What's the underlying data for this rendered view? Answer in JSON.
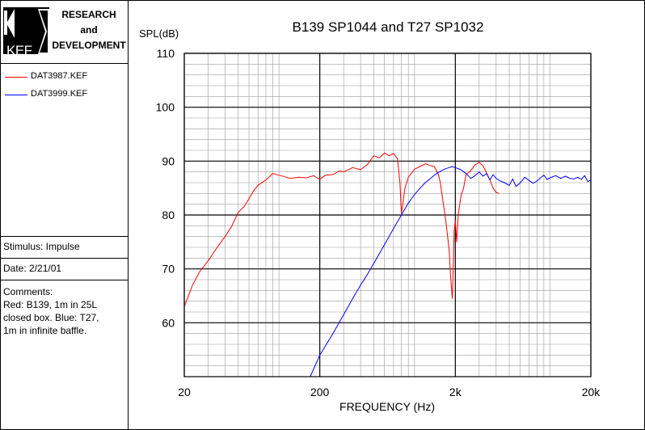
{
  "branding": {
    "logo_text": "KEF",
    "lines": [
      "RESEARCH",
      "and",
      "DEVELOPMENT"
    ]
  },
  "legend": [
    {
      "label": "DAT3987.KEF",
      "color": "#ff0000"
    },
    {
      "label": "DAT3999.KEF",
      "color": "#0000ff"
    }
  ],
  "stimulus": "Stimulus: Impulse",
  "date": "Date: 2/21/01",
  "comments": [
    "Comments:",
    "Red: B139, 1m in 25L",
    "closed box. Blue: T27,",
    "1m  in infinite baffle."
  ],
  "chart_data": {
    "type": "line",
    "title": "B139 SP1044 and T27 SP1032",
    "ylabel": "SPL(dB)",
    "xlabel": "FREQUENCY (Hz)",
    "xscale": "log",
    "xlim": [
      20,
      20000
    ],
    "ylim": [
      50,
      110
    ],
    "x_ticks": [
      {
        "value": 20,
        "label": "20"
      },
      {
        "value": 200,
        "label": "200"
      },
      {
        "value": 2000,
        "label": "2k"
      },
      {
        "value": 20000,
        "label": "20k"
      }
    ],
    "y_ticks": [
      {
        "value": 110,
        "label": "110"
      },
      {
        "value": 100,
        "label": "100"
      },
      {
        "value": 90,
        "label": "90"
      },
      {
        "value": 80,
        "label": "80"
      },
      {
        "value": 70,
        "label": "70"
      },
      {
        "value": 60,
        "label": "60"
      }
    ],
    "grid": true,
    "series": [
      {
        "name": "DAT3987.KEF",
        "color": "#ff0000",
        "x": [
          20,
          23,
          26,
          30,
          35,
          40,
          45,
          50,
          55,
          60,
          65,
          70,
          80,
          90,
          100,
          110,
          120,
          140,
          160,
          180,
          200,
          220,
          250,
          280,
          300,
          350,
          400,
          450,
          500,
          550,
          600,
          650,
          700,
          750,
          780,
          800,
          820,
          850,
          900,
          1000,
          1100,
          1200,
          1300,
          1400,
          1500,
          1550,
          1600,
          1700,
          1800,
          1850,
          1900,
          1930,
          1960,
          2000,
          2050,
          2100,
          2200,
          2300,
          2400,
          2600,
          2800,
          3000,
          3200,
          3400,
          3600,
          3800,
          4000,
          4200
        ],
        "y": [
          63,
          67,
          69.5,
          71.5,
          74,
          76,
          78,
          80.5,
          81.5,
          83,
          84.5,
          85.5,
          86.5,
          87.7,
          87.4,
          87.1,
          86.8,
          87,
          86.9,
          87.3,
          86.6,
          87.4,
          87.5,
          88.2,
          88,
          88.8,
          88.4,
          89.4,
          91,
          90.6,
          91.5,
          91,
          91.4,
          90.4,
          86,
          80.3,
          82,
          85,
          87,
          88.5,
          89,
          89.5,
          89.2,
          89,
          87.5,
          86,
          83.5,
          79,
          73.5,
          68,
          64.5,
          70,
          77,
          79,
          75,
          80,
          83.5,
          85,
          87.5,
          88.2,
          89.3,
          89.8,
          89.1,
          87.8,
          86.5,
          85,
          84.2,
          84
        ],
        "gaps": []
      },
      {
        "name": "DAT3999.KEF",
        "color": "#0000ff",
        "x": [
          170,
          200,
          250,
          300,
          350,
          400,
          450,
          500,
          600,
          700,
          800,
          900,
          1000,
          1100,
          1200,
          1300,
          1400,
          1500,
          1600,
          1700,
          1800,
          1900,
          2000,
          2200,
          2400,
          2600,
          2800,
          3000,
          3200,
          3400,
          3600,
          3800,
          4000,
          4300,
          4600,
          5000,
          5300,
          5600,
          6000,
          6500,
          7000,
          7500,
          8000,
          8500,
          9000,
          9500,
          10000,
          11000,
          12000,
          13000,
          14000,
          15000,
          16000,
          17000,
          18000,
          19000,
          20000
        ],
        "y": [
          50,
          54,
          58,
          61.5,
          64.5,
          67,
          69,
          71,
          74.5,
          77.5,
          80,
          82.2,
          83.8,
          85,
          86,
          86.7,
          87.4,
          87.9,
          88.3,
          88.6,
          88.8,
          89,
          88.8,
          88.4,
          87.7,
          86.8,
          87.3,
          88,
          87.2,
          87.7,
          86.5,
          87.5,
          86.8,
          86.3,
          86,
          85.5,
          86.7,
          85.3,
          85.9,
          87,
          86.4,
          85.9,
          86.3,
          86.9,
          87.4,
          86.6,
          86.9,
          87.3,
          86.8,
          87.2,
          86.8,
          86.7,
          87,
          86.6,
          87.3,
          86.2,
          86.5
        ]
      }
    ]
  }
}
